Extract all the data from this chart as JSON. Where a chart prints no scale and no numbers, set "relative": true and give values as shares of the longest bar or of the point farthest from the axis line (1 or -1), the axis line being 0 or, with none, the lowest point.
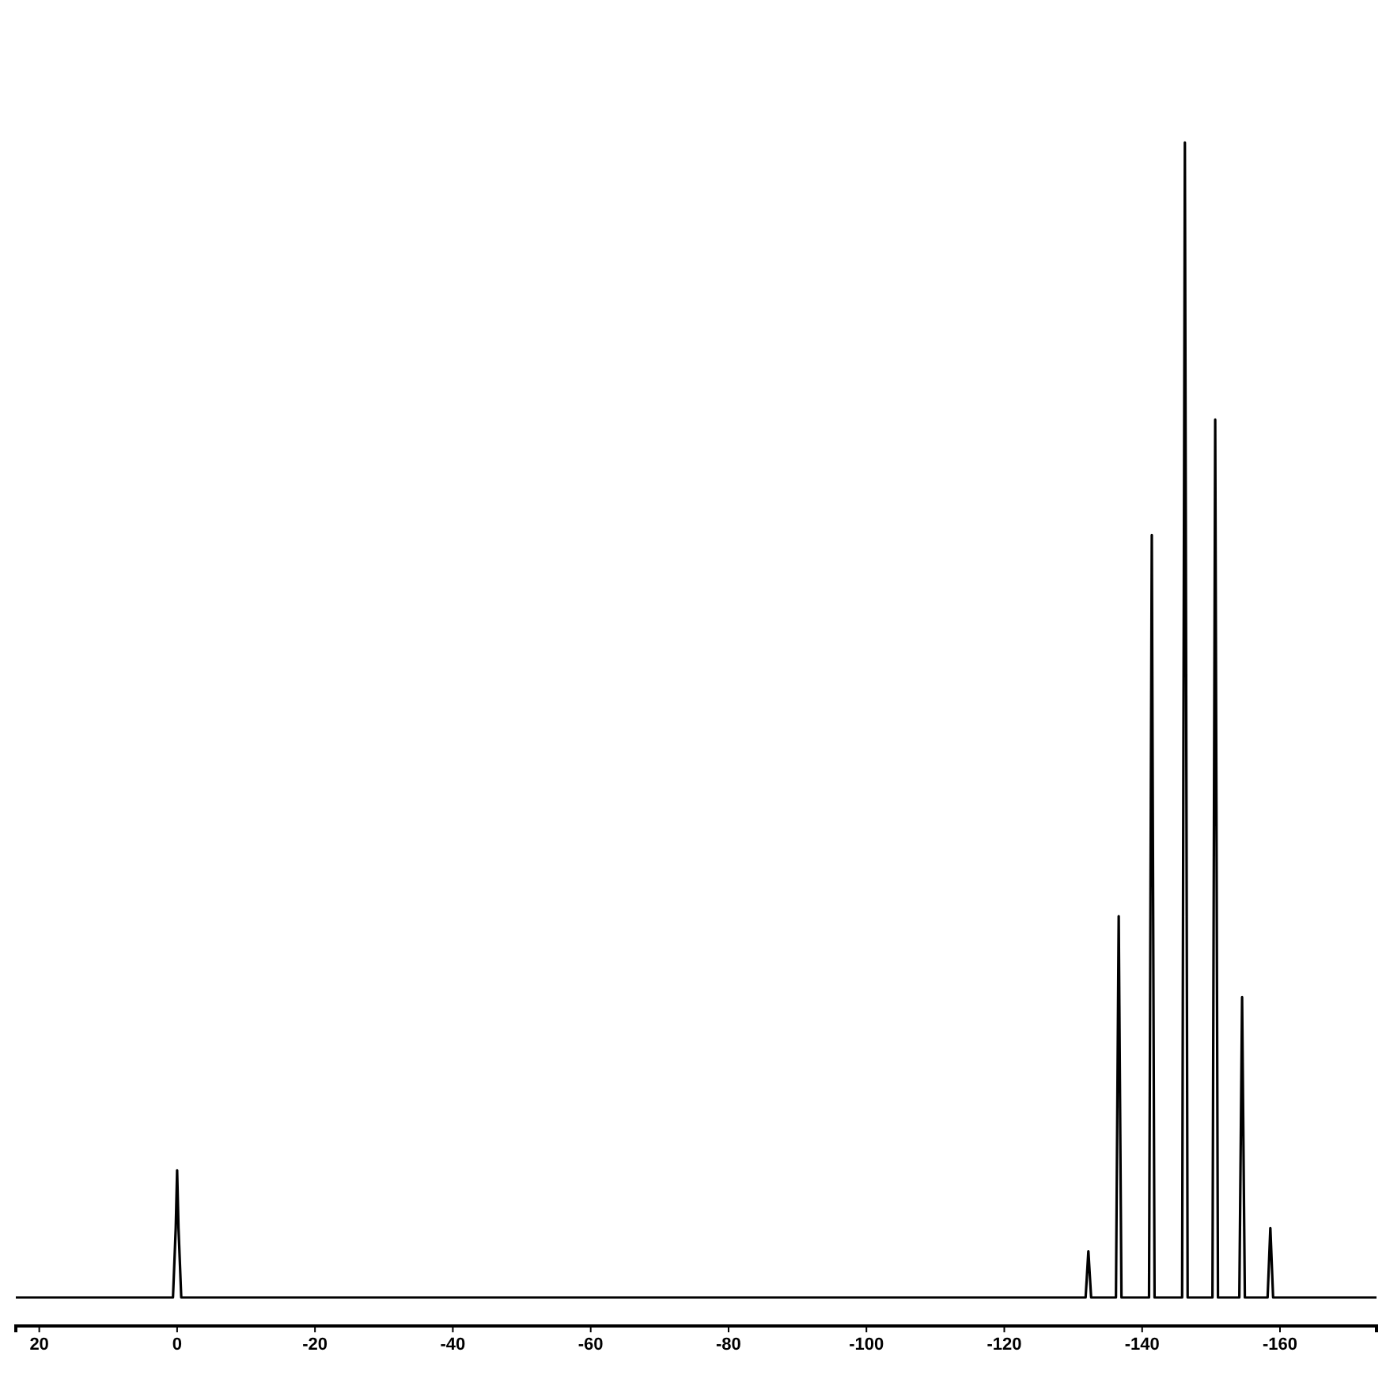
{
  "chart_data": {
    "type": "line",
    "relative": true,
    "xlim": [
      23.4,
      -174
    ],
    "xticks": [
      20,
      0,
      -20,
      -40,
      -60,
      -80,
      -100,
      -120,
      -140,
      -160
    ],
    "grid": false,
    "marker": "none",
    "line_style": "solid",
    "series": [
      {
        "color": "#000000",
        "x": [
          23.4,
          0.6,
          0.2,
          0,
          -0.2,
          -0.6,
          -131.8,
          -132.2,
          -132.6,
          -136.2,
          -136.6,
          -137,
          -141,
          -141.4,
          -141.8,
          -145.8,
          -146.2,
          -146.6,
          -150.2,
          -150.6,
          -151,
          -154.1,
          -154.5,
          -154.9,
          -158.2,
          -158.6,
          -159,
          -174
        ],
        "values": [
          0,
          0,
          0.06,
          0.11,
          0.06,
          0,
          0,
          0.04,
          0,
          0,
          0.33,
          0,
          0,
          0.66,
          0,
          0,
          1,
          0,
          0,
          0.76,
          0,
          0,
          0.26,
          0,
          0,
          0.06,
          0,
          0
        ]
      }
    ]
  }
}
